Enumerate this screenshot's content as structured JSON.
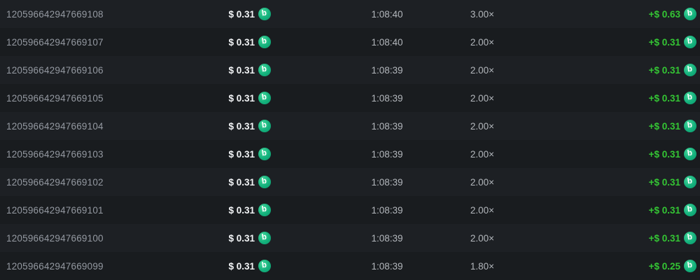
{
  "colors": {
    "row_odd": "#1d2024",
    "row_even": "#191c1f",
    "page_background": "#141619",
    "id_text": "#9499a1",
    "secondary_text": "#b3b7bc",
    "amount_text": "#f2f4f6",
    "profit_green": "#34c634",
    "coin_green": "#14b17c"
  },
  "icons": {
    "bch_coin_glyph": "b"
  },
  "table": {
    "rows": [
      {
        "id": "120596642947669108",
        "bet": "$ 0.31",
        "time": "1:08:40",
        "multiplier": "3.00×",
        "payout": "+$ 0.63"
      },
      {
        "id": "120596642947669107",
        "bet": "$ 0.31",
        "time": "1:08:40",
        "multiplier": "2.00×",
        "payout": "+$ 0.31"
      },
      {
        "id": "120596642947669106",
        "bet": "$ 0.31",
        "time": "1:08:39",
        "multiplier": "2.00×",
        "payout": "+$ 0.31"
      },
      {
        "id": "120596642947669105",
        "bet": "$ 0.31",
        "time": "1:08:39",
        "multiplier": "2.00×",
        "payout": "+$ 0.31"
      },
      {
        "id": "120596642947669104",
        "bet": "$ 0.31",
        "time": "1:08:39",
        "multiplier": "2.00×",
        "payout": "+$ 0.31"
      },
      {
        "id": "120596642947669103",
        "bet": "$ 0.31",
        "time": "1:08:39",
        "multiplier": "2.00×",
        "payout": "+$ 0.31"
      },
      {
        "id": "120596642947669102",
        "bet": "$ 0.31",
        "time": "1:08:39",
        "multiplier": "2.00×",
        "payout": "+$ 0.31"
      },
      {
        "id": "120596642947669101",
        "bet": "$ 0.31",
        "time": "1:08:39",
        "multiplier": "2.00×",
        "payout": "+$ 0.31"
      },
      {
        "id": "120596642947669100",
        "bet": "$ 0.31",
        "time": "1:08:39",
        "multiplier": "2.00×",
        "payout": "+$ 0.31"
      },
      {
        "id": "120596642947669099",
        "bet": "$ 0.31",
        "time": "1:08:39",
        "multiplier": "1.80×",
        "payout": "+$ 0.25"
      }
    ]
  }
}
